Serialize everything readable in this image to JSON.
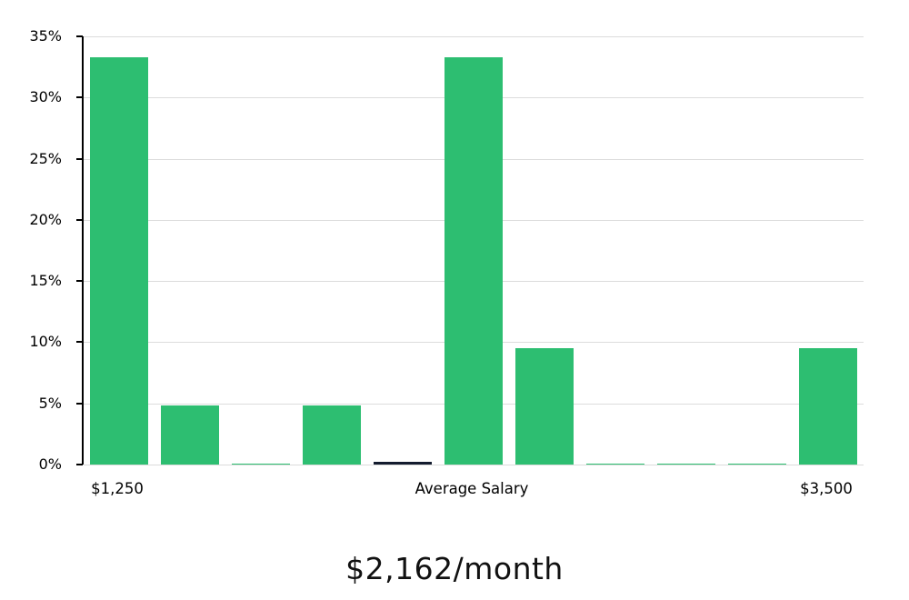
{
  "page": {
    "background": "#ffffff"
  },
  "chart_data": {
    "type": "bar",
    "title": "$2,162/month",
    "xlabel": "",
    "ylabel": "",
    "ylim": [
      0,
      35
    ],
    "grid": true,
    "grid_color": "#dcdcdc",
    "axis_color": "#000000",
    "bar_color": "#2dbe71",
    "highlight_index": 4,
    "highlight_color": "#131b2e",
    "values": [
      33.3,
      4.8,
      0.1,
      4.8,
      0.2,
      33.3,
      9.5,
      0.1,
      0.1,
      0.1,
      9.5
    ],
    "y_ticks": [
      {
        "label": "0%",
        "value": 0
      },
      {
        "label": "5%",
        "value": 5
      },
      {
        "label": "10%",
        "value": 10
      },
      {
        "label": "15%",
        "value": 15
      },
      {
        "label": "20%",
        "value": 20
      },
      {
        "label": "25%",
        "value": 25
      },
      {
        "label": "30%",
        "value": 30
      },
      {
        "label": "35%",
        "value": 35
      }
    ],
    "x_labels": [
      {
        "text": "$1,250",
        "bar": 0
      },
      {
        "text": "Average Salary",
        "bar": "center"
      },
      {
        "text": "$3,500",
        "bar": 10
      }
    ]
  }
}
